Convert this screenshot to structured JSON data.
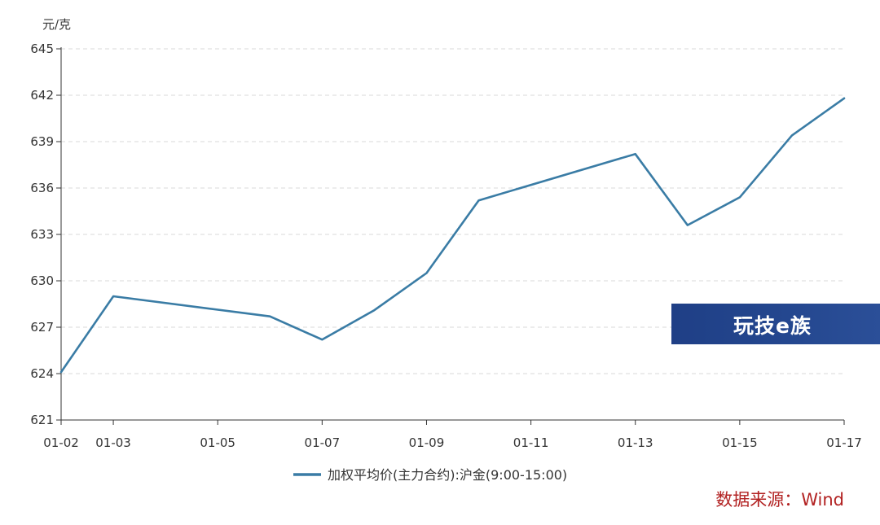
{
  "chart_data": {
    "type": "line",
    "title": "",
    "ylabel": "元/克",
    "xlabel": "",
    "ylim": [
      621,
      645
    ],
    "yticks": [
      621,
      624,
      627,
      630,
      633,
      636,
      639,
      642,
      645
    ],
    "x": [
      "01-02",
      "01-03",
      "01-04",
      "01-05",
      "01-06",
      "01-07",
      "01-08",
      "01-09",
      "01-10",
      "01-11",
      "01-12",
      "01-13",
      "01-14",
      "01-15",
      "01-16",
      "01-17"
    ],
    "x_tick_labels": [
      "01-02",
      "01-03",
      "01-05",
      "01-07",
      "01-09",
      "01-11",
      "01-13",
      "01-15",
      "01-17"
    ],
    "series": [
      {
        "name": "加权平均价(主力合约):沪金(9:00-15:00)",
        "color": "#3a7ca5",
        "points": [
          {
            "x": "01-02",
            "y": 624.1
          },
          {
            "x": "01-03",
            "y": 629.0
          },
          {
            "x": "01-06",
            "y": 627.7
          },
          {
            "x": "01-07",
            "y": 626.2
          },
          {
            "x": "01-08",
            "y": 628.1
          },
          {
            "x": "01-09",
            "y": 630.5
          },
          {
            "x": "01-10",
            "y": 635.2
          },
          {
            "x": "01-13",
            "y": 638.2
          },
          {
            "x": "01-14",
            "y": 633.6
          },
          {
            "x": "01-15",
            "y": 635.4
          },
          {
            "x": "01-16",
            "y": 639.4
          },
          {
            "x": "01-17",
            "y": 641.8
          }
        ]
      }
    ],
    "grid": "horizontal-dashed",
    "legend_position": "bottom-center",
    "source_note": "数据来源：Wind"
  },
  "watermark": {
    "text": "玩技e族",
    "colors": {
      "bg": "#24478f",
      "fg": "#ffffff"
    }
  }
}
